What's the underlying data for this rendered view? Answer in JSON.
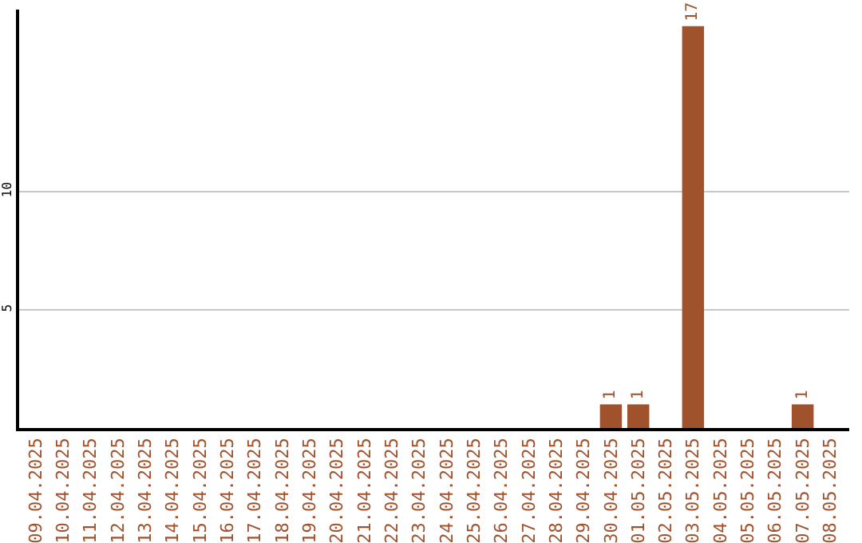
{
  "chart_data": {
    "type": "bar",
    "categories": [
      "09.04.2025",
      "10.04.2025",
      "11.04.2025",
      "12.04.2025",
      "13.04.2025",
      "14.04.2025",
      "15.04.2025",
      "16.04.2025",
      "17.04.2025",
      "18.04.2025",
      "19.04.2025",
      "20.04.2025",
      "21.04.2025",
      "22.04.2025",
      "23.04.2025",
      "24.04.2025",
      "25.04.2025",
      "26.04.2025",
      "27.04.2025",
      "28.04.2025",
      "29.04.2025",
      "30.04.2025",
      "01.05.2025",
      "02.05.2025",
      "03.05.2025",
      "04.05.2025",
      "05.05.2025",
      "06.05.2025",
      "07.05.2025",
      "08.05.2025"
    ],
    "values": [
      0,
      0,
      0,
      0,
      0,
      0,
      0,
      0,
      0,
      0,
      0,
      0,
      0,
      0,
      0,
      0,
      0,
      0,
      0,
      0,
      0,
      1,
      1,
      0,
      17,
      0,
      0,
      0,
      1,
      0
    ],
    "value_labels": [
      null,
      null,
      null,
      null,
      null,
      null,
      null,
      null,
      null,
      null,
      null,
      null,
      null,
      null,
      null,
      null,
      null,
      null,
      null,
      null,
      null,
      "1",
      "1",
      null,
      "17",
      null,
      null,
      null,
      "1",
      null
    ],
    "color": "#a0522d",
    "ylim": [
      0,
      17.7
    ],
    "yticks": [
      5,
      10
    ],
    "grid": "y",
    "legend": false
  }
}
